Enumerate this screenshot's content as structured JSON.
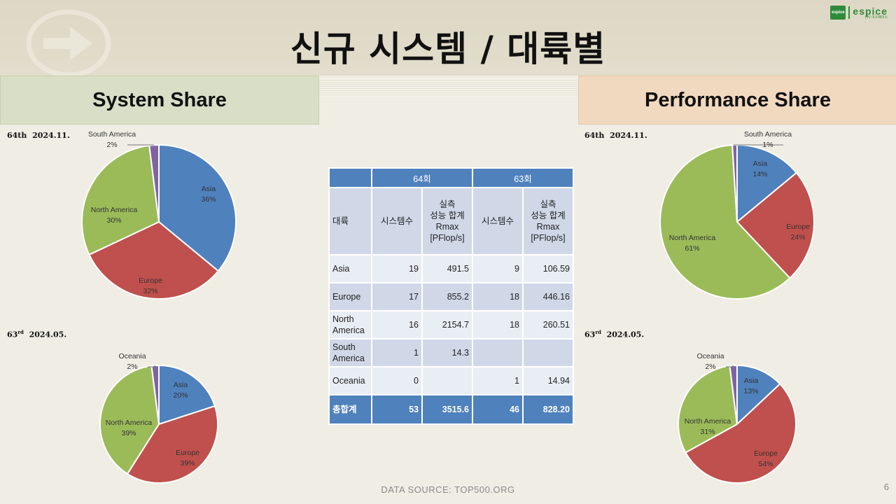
{
  "slide": {
    "title": "신규 시스템 / 대륙별",
    "left_header": "System Share",
    "right_header": "Performance Share",
    "edition_64_label": "64th",
    "edition_64_date": "2024.11.",
    "edition_63_num": "63",
    "edition_63_sup": "rd",
    "edition_63_date": "2024.05.",
    "footer": "DATA SOURCE: TOP500.ORG",
    "page_number": "6",
    "logo_box_text": "espice",
    "logo_name": "espice",
    "logo_sub": "(주) 이스페이스"
  },
  "colors": {
    "Asia": "#4f81bd",
    "Europe": "#c0504d",
    "North America": "#9bbb59",
    "South America": "#8064a2",
    "Oceania": "#8064a2"
  },
  "table": {
    "headers": [
      "",
      "64회",
      "63회"
    ],
    "subheaders": [
      "대륙",
      "시스템수",
      "실측\n성능 합계\nRmax\n[PFlop/s]",
      "시스템수",
      "실측\n성능 합계\nRmax\n[PFlop/s]"
    ],
    "rows": [
      [
        "Asia",
        "19",
        "491.5",
        "9",
        "106.59"
      ],
      [
        "Europe",
        "17",
        "855.2",
        "18",
        "446.16"
      ],
      [
        "North America",
        "16",
        "2154.7",
        "18",
        "260.51"
      ],
      [
        "South America",
        "1",
        "14.3",
        "",
        ""
      ],
      [
        "Oceania",
        "0",
        "",
        "1",
        "14.94"
      ]
    ],
    "total": [
      "총합계",
      "53",
      "3515.6",
      "46",
      "828.20"
    ]
  },
  "chart_data": [
    {
      "type": "pie",
      "title": "System Share",
      "categories": [
        "Asia",
        "Europe",
        "North America",
        "South America"
      ],
      "values": [
        36,
        32,
        30,
        2
      ],
      "labels": [
        "36%",
        "32%",
        "30%",
        "2%"
      ]
    },
    {
      "type": "pie",
      "title": "System Share",
      "categories": [
        "Asia",
        "Europe",
        "North America",
        "Oceania"
      ],
      "values": [
        20,
        39,
        39,
        2
      ],
      "labels": [
        "20%",
        "39%",
        "39%",
        "2%"
      ]
    },
    {
      "type": "pie",
      "title": "Performance Share",
      "categories": [
        "Asia",
        "Europe",
        "North America",
        "South America"
      ],
      "values": [
        14,
        24,
        61,
        1
      ],
      "labels": [
        "14%",
        "24%",
        "61%",
        "1%"
      ]
    },
    {
      "type": "pie",
      "title": "Performance Share",
      "categories": [
        "Asia",
        "Europe",
        "North America",
        "Oceania"
      ],
      "values": [
        13,
        54,
        31,
        2
      ],
      "labels": [
        "13%",
        "54%",
        "31%",
        "2%"
      ]
    }
  ]
}
